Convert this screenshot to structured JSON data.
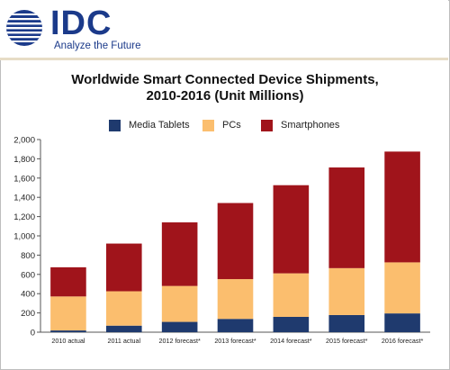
{
  "brand": {
    "logo_text": "IDC",
    "tagline": "Analyze the Future"
  },
  "colors": {
    "brand_blue": "#1b3a8a",
    "media_tablets": "#1f3a6e",
    "pcs": "#fbbe6e",
    "smartphones": "#a0141b"
  },
  "chart_data": {
    "type": "bar",
    "stacked": true,
    "title": "Worldwide Smart Connected Device Shipments,",
    "subtitle": "2010-2016 (Unit Millions)",
    "categories": [
      "2010 actual",
      "2011 actual",
      "2012 forecast*",
      "2013 forecast*",
      "2014 forecast*",
      "2015 forecast*",
      "2016 forecast*"
    ],
    "series": [
      {
        "name": "Media Tablets",
        "color": "#1f3a6e",
        "values": [
          18,
          68,
          107,
          138,
          159,
          178,
          195
        ]
      },
      {
        "name": "PCs",
        "color": "#fbbe6e",
        "values": [
          353,
          357,
          373,
          413,
          452,
          487,
          530
        ]
      },
      {
        "name": "Smartphones",
        "color": "#a0141b",
        "values": [
          303,
          495,
          660,
          790,
          915,
          1045,
          1150
        ]
      }
    ],
    "ylim": [
      0,
      2000
    ],
    "yticks": [
      "0",
      "200",
      "400",
      "600",
      "800",
      "1,000",
      "1,200",
      "1,400",
      "1,600",
      "1,800",
      "2,000"
    ],
    "ytick_values": [
      0,
      200,
      400,
      600,
      800,
      1000,
      1200,
      1400,
      1600,
      1800,
      2000
    ],
    "xlabel": "",
    "ylabel": "",
    "grid": false,
    "legend_position": "top"
  }
}
